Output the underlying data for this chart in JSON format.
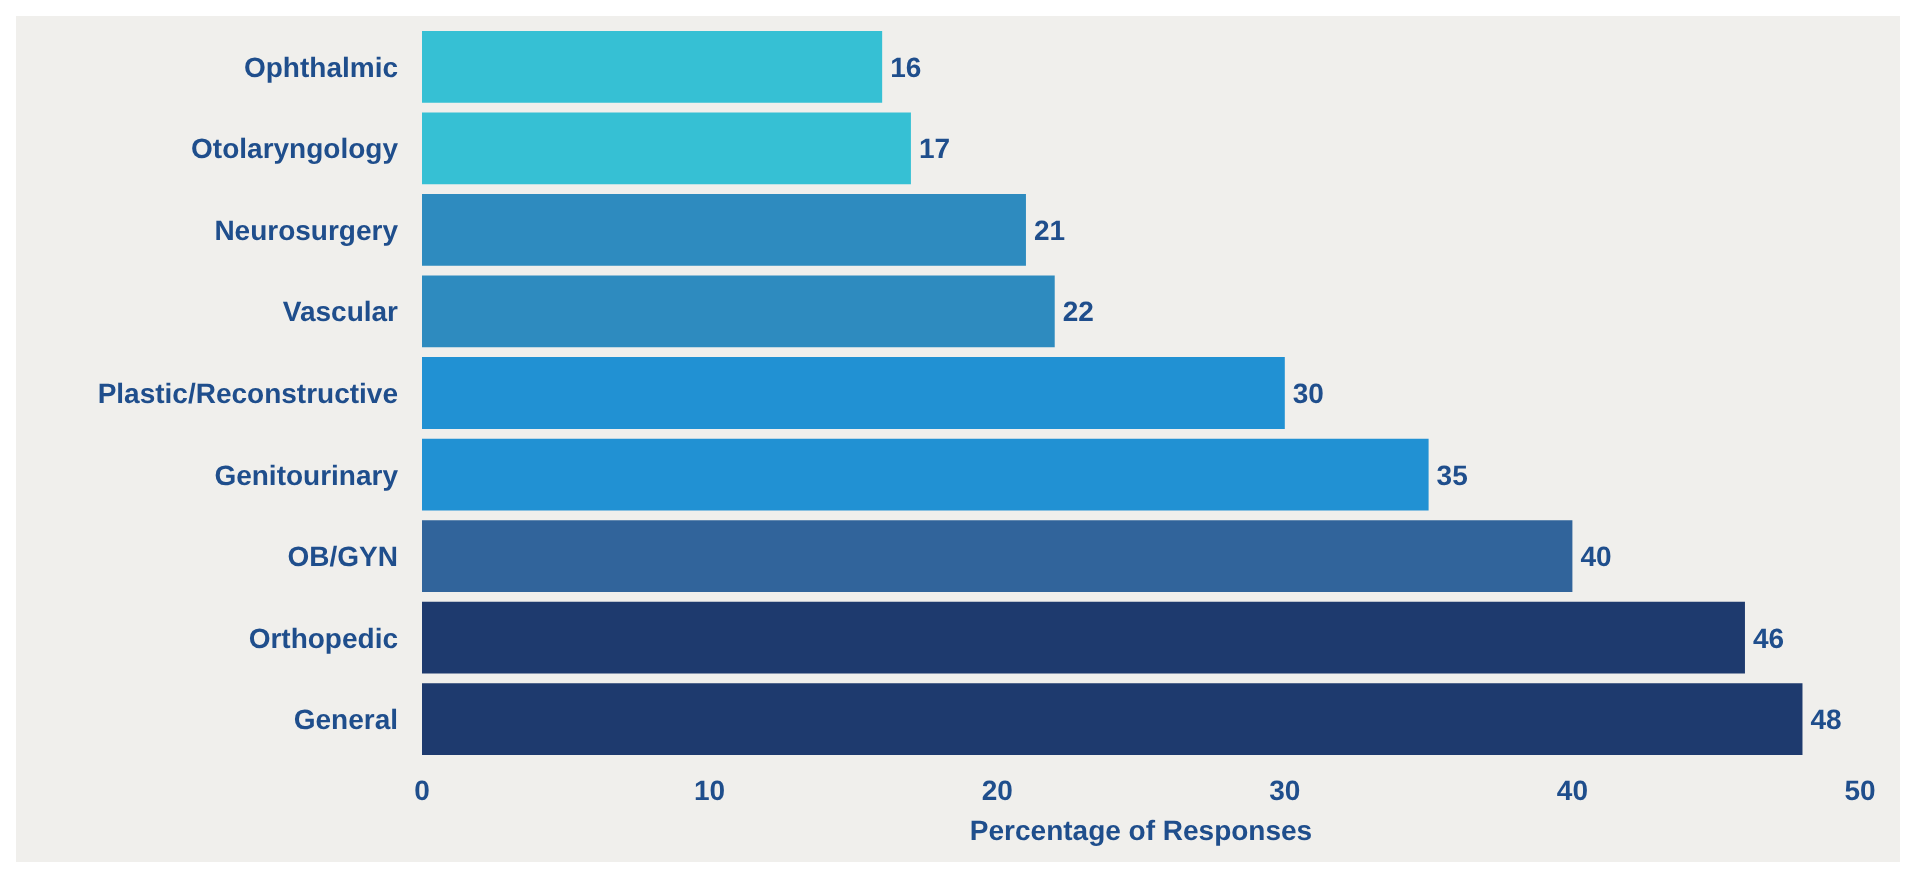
{
  "chart_data": {
    "type": "bar",
    "orientation": "horizontal",
    "xlabel": "Percentage of Responses",
    "categories": [
      "Ophthalmic",
      "Otolaryngology",
      "Neurosurgery",
      "Vascular",
      "Plastic/Reconstructive",
      "Genitourinary",
      "OB/GYN",
      "Orthopedic",
      "General"
    ],
    "values": [
      16,
      17,
      21,
      22,
      30,
      35,
      40,
      46,
      48
    ],
    "colors": [
      "#36c0d4",
      "#36c0d4",
      "#2e8bbf",
      "#2e8bbf",
      "#2191d3",
      "#2191d3",
      "#31649b",
      "#1e3a6e",
      "#1e3a6e"
    ],
    "xlim": [
      0,
      50
    ],
    "xticks": [
      0,
      10,
      20,
      30,
      40,
      50
    ],
    "grid": false,
    "data_labels": true
  }
}
